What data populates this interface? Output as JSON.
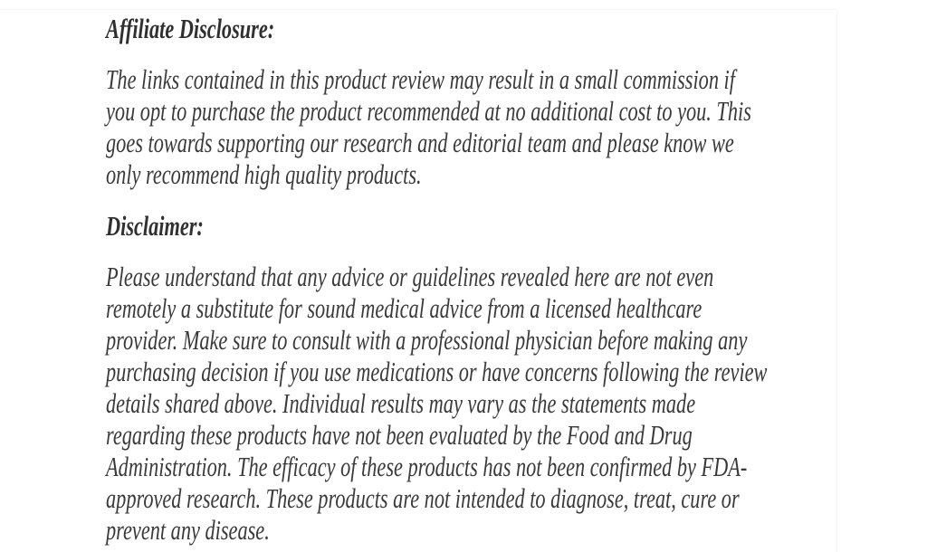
{
  "page": {
    "background_color": "#ffffff",
    "body_text_color": "#3a3a3a",
    "heading_text_color": "#303030",
    "card_edge_color": "#f6f6f6"
  },
  "sections": [
    {
      "heading": "Affiliate Disclosure:",
      "paragraph": "The links contained in this product review may result in a small commission if you opt to purchase the product recommended at no additional cost to you. This goes towards supporting our research and editorial team and please know we only recommend high quality products.",
      "lines": [
        "The links contained in this product review may result in a small commission if",
        "you opt to purchase the product recommended at no additional cost to you. This",
        "goes towards supporting our research and editorial team and please know we",
        "only recommend high quality products."
      ]
    },
    {
      "heading": "Disclaimer:",
      "paragraph": "Please understand that any advice or guidelines revealed here are not even remotely a substitute for sound medical advice from a licensed healthcare provider. Make sure to consult with a professional physician before making any purchasing decision if you use medications or have concerns following the review details shared above. Individual results may vary as the statements made regarding these products have not been evaluated by the Food and Drug Administration. The efficacy of these products has not been confirmed by FDA-approved research. These products are not intended to diagnose, treat, cure or prevent any disease.",
      "lines": [
        "Please understand that any advice or guidelines revealed here are not even",
        "remotely a substitute for sound medical advice from a licensed healthcare",
        "provider. Make sure to consult with a professional physician before making any",
        "purchasing decision if you use medications or have concerns following the review",
        "details shared above. Individual results may vary as the statements made",
        "regarding these products have not been evaluated by the Food and Drug",
        "Administration. The efficacy of these products has not been confirmed by FDA-",
        "approved research. These products are not intended to diagnose, treat, cure or",
        "prevent any disease."
      ]
    }
  ]
}
